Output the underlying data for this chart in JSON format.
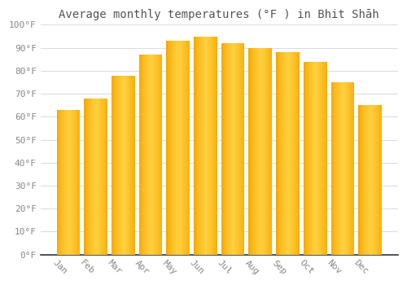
{
  "title": "Average monthly temperatures (°F ) in Bhit Shāh",
  "months": [
    "Jan",
    "Feb",
    "Mar",
    "Apr",
    "May",
    "Jun",
    "Jul",
    "Aug",
    "Sep",
    "Oct",
    "Nov",
    "Dec"
  ],
  "values": [
    63,
    68,
    78,
    87,
    93,
    95,
    92,
    90,
    88,
    84,
    75,
    65
  ],
  "bar_color_center": "#FFD040",
  "bar_color_edge": "#F5A800",
  "background_color": "#FFFFFF",
  "grid_color": "#DDDDDD",
  "ylim": [
    0,
    100
  ],
  "yticks": [
    0,
    10,
    20,
    30,
    40,
    50,
    60,
    70,
    80,
    90,
    100
  ],
  "ytick_labels": [
    "0°F",
    "10°F",
    "20°F",
    "30°F",
    "40°F",
    "50°F",
    "60°F",
    "70°F",
    "80°F",
    "90°F",
    "100°F"
  ],
  "tick_fontsize": 8,
  "title_fontsize": 10,
  "title_color": "#555555",
  "tick_color": "#888888",
  "bar_width": 0.85,
  "xlabel_rotation": -45,
  "bottom_spine_color": "#333333"
}
